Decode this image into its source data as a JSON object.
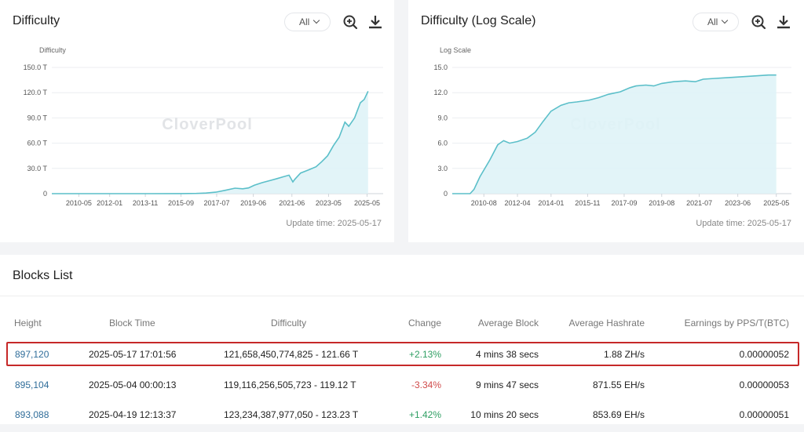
{
  "charts": [
    {
      "title": "Difficulty",
      "range_label": "All",
      "update_text": "Update time: 2025-05-17"
    },
    {
      "title": "Difficulty (Log Scale)",
      "range_label": "All",
      "update_text": "Update time: 2025-05-17"
    }
  ],
  "chart_data": [
    {
      "type": "area",
      "ylabel": "Difficulty",
      "ylim": [
        0,
        150
      ],
      "y_ticks": [
        "0",
        "30.0 T",
        "60.0 T",
        "90.0 T",
        "120.0 T",
        "150.0 T"
      ],
      "x_ticks": [
        "2010-05",
        "2012-01",
        "2013-11",
        "2015-09",
        "2017-07",
        "2019-06",
        "2021-06",
        "2023-05",
        "2025-05"
      ],
      "watermark": "CloverPool",
      "grid": true,
      "color": "#5bbfc9",
      "x": [
        2009.0,
        2010.4,
        2012.0,
        2013.9,
        2015.7,
        2016.5,
        2017.0,
        2017.5,
        2018.0,
        2018.5,
        2018.9,
        2019.2,
        2019.5,
        2019.9,
        2020.3,
        2020.7,
        2021.0,
        2021.3,
        2021.5,
        2021.6,
        2021.9,
        2022.3,
        2022.7,
        2023.0,
        2023.3,
        2023.6,
        2023.9,
        2024.2,
        2024.4,
        2024.7,
        2025.0,
        2025.2,
        2025.4
      ],
      "y": [
        0,
        0,
        0,
        0,
        0.1,
        0.3,
        0.7,
        1.8,
        4.0,
        6.5,
        5.8,
        6.8,
        10.0,
        13.0,
        15.5,
        18.0,
        20.0,
        22.0,
        14.0,
        17.0,
        24.5,
        28.0,
        32.0,
        38.0,
        45.0,
        57.0,
        67.0,
        85.0,
        80.0,
        90.0,
        108.0,
        112.0,
        121.7
      ]
    },
    {
      "type": "area",
      "ylabel": "Log Scale",
      "ylim": [
        0,
        15
      ],
      "y_ticks": [
        "0",
        "3.0",
        "6.0",
        "9.0",
        "12.0",
        "15.0"
      ],
      "x_ticks": [
        "2010-08",
        "2012-04",
        "2014-01",
        "2015-11",
        "2017-09",
        "2019-08",
        "2021-07",
        "2023-06",
        "2025-05"
      ],
      "watermark": "CloverPool",
      "grid": true,
      "color": "#5bbfc9",
      "x": [
        2009.0,
        2009.9,
        2010.1,
        2010.4,
        2010.9,
        2011.3,
        2011.6,
        2011.9,
        2012.3,
        2012.8,
        2013.2,
        2013.6,
        2014.0,
        2014.5,
        2014.9,
        2015.3,
        2015.9,
        2016.4,
        2016.9,
        2017.5,
        2018.0,
        2018.3,
        2018.8,
        2019.2,
        2019.6,
        2020.2,
        2020.8,
        2021.3,
        2021.7,
        2022.3,
        2023.0,
        2023.7,
        2024.4,
        2025.0,
        2025.4
      ],
      "y": [
        0,
        0,
        0.5,
        2.0,
        4.0,
        5.8,
        6.3,
        6.0,
        6.2,
        6.6,
        7.3,
        8.6,
        9.8,
        10.5,
        10.8,
        10.9,
        11.1,
        11.4,
        11.8,
        12.1,
        12.6,
        12.8,
        12.9,
        12.8,
        13.1,
        13.3,
        13.4,
        13.3,
        13.6,
        13.7,
        13.8,
        13.9,
        14.0,
        14.1,
        14.1
      ]
    }
  ],
  "blocks": {
    "title": "Blocks List",
    "headers": [
      "Height",
      "Block Time",
      "Difficulty",
      "Change",
      "Average Block",
      "Average Hashrate",
      "Earnings by PPS/T(BTC)"
    ],
    "rows": [
      {
        "height": "897,120",
        "time": "2025-05-17 17:01:56",
        "difficulty": "121,658,450,774,825 - 121.66 T",
        "change": "+2.13%",
        "change_dir": "pos",
        "avg_block": "4 mins 38 secs",
        "avg_hashrate": "1.88 ZH/s",
        "earnings": "0.00000052"
      },
      {
        "height": "895,104",
        "time": "2025-05-04 00:00:13",
        "difficulty": "119,116,256,505,723 - 119.12 T",
        "change": "-3.34%",
        "change_dir": "neg",
        "avg_block": "9 mins 47 secs",
        "avg_hashrate": "871.55 EH/s",
        "earnings": "0.00000053"
      },
      {
        "height": "893,088",
        "time": "2025-04-19 12:13:37",
        "difficulty": "123,234,387,977,050 - 123.23 T",
        "change": "+1.42%",
        "change_dir": "pos",
        "avg_block": "10 mins 20 secs",
        "avg_hashrate": "853.69 EH/s",
        "earnings": "0.00000051"
      }
    ]
  },
  "icons": [
    "chevron-down-icon",
    "zoom-in-icon",
    "download-icon"
  ]
}
